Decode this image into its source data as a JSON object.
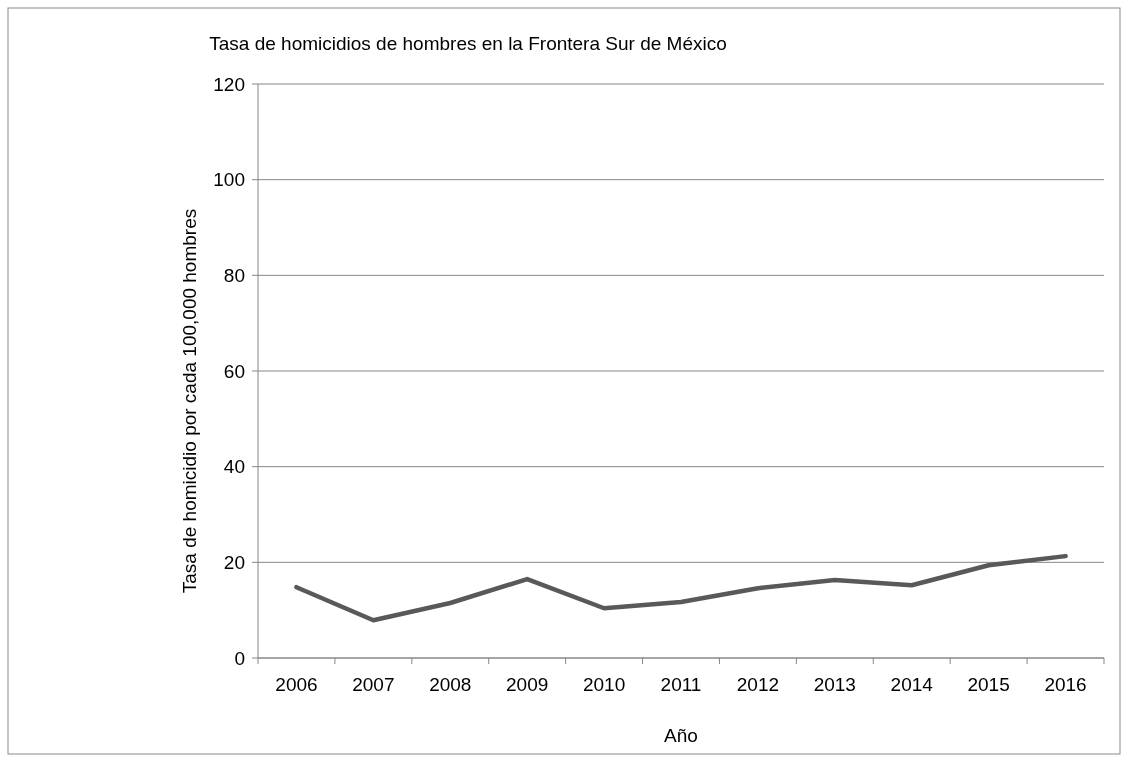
{
  "chart_data": {
    "type": "line",
    "title": "Tasa de homicidios de hombres en la Frontera Sur de México",
    "xlabel": "Año",
    "ylabel": "Tasa de homicidio por cada 100,000 hombres",
    "categories": [
      "2006",
      "2007",
      "2008",
      "2009",
      "2010",
      "2011",
      "2012",
      "2013",
      "2014",
      "2015",
      "2016"
    ],
    "series": [
      {
        "color": "#595959",
        "values": [
          14.8,
          7.9,
          11.5,
          16.5,
          10.4,
          11.7,
          14.6,
          16.3,
          15.2,
          19.4,
          21.3
        ]
      }
    ],
    "ylim": [
      0,
      120
    ],
    "yticks": [
      0,
      20,
      40,
      60,
      80,
      100,
      120
    ],
    "grid": "y",
    "line_style": "solid"
  }
}
